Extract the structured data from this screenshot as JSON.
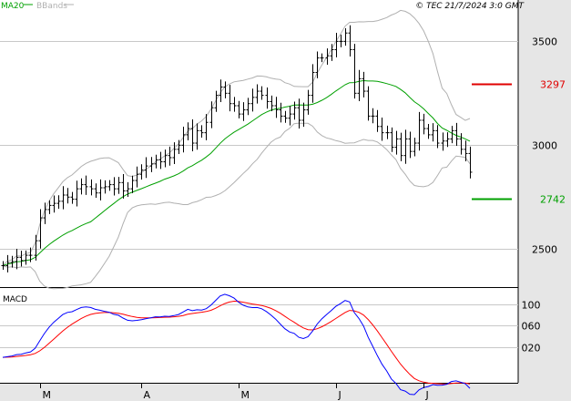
{
  "header": {
    "indicator_ma": "MA20",
    "indicator_bb": "BBands",
    "copyright": "© TEC 21/7/2024 3:0 GMT"
  },
  "colors": {
    "ma": "#00a000",
    "bbands": "#b0b0b0",
    "bars": "#000000",
    "resistance": "#e00000",
    "support": "#00a000",
    "macd": "#0000ff",
    "signal": "#ff0000",
    "axis_bg": "#e6e6e6",
    "grid": "#c8c8c8"
  },
  "chart_data": [
    {
      "type": "ohlc",
      "name": "price",
      "ylim": [
        2330,
        3620
      ],
      "y_ticks": [
        3500,
        3000,
        2500
      ],
      "y_tick_labels": [
        "3500",
        "3000",
        "2500"
      ],
      "levels": [
        {
          "label": "3297",
          "value": 3297,
          "kind": "resistance"
        },
        {
          "label": "2742",
          "value": 2742,
          "kind": "support"
        }
      ],
      "x_labels": [
        {
          "label": "M",
          "index": 8
        },
        {
          "label": "A",
          "index": 30
        },
        {
          "label": "M",
          "index": 51
        },
        {
          "label": "J",
          "index": 72
        },
        {
          "label": "J",
          "index": 91
        }
      ],
      "closes": [
        2420,
        2435,
        2440,
        2460,
        2445,
        2470,
        2470,
        2540,
        2650,
        2690,
        2710,
        2720,
        2730,
        2760,
        2750,
        2740,
        2790,
        2810,
        2800,
        2790,
        2770,
        2795,
        2800,
        2810,
        2790,
        2820,
        2780,
        2790,
        2830,
        2860,
        2880,
        2900,
        2910,
        2930,
        2920,
        2950,
        2940,
        2980,
        3000,
        3050,
        3080,
        3010,
        3070,
        3060,
        3110,
        3180,
        3240,
        3280,
        3250,
        3200,
        3190,
        3150,
        3170,
        3200,
        3230,
        3260,
        3240,
        3210,
        3190,
        3170,
        3140,
        3130,
        3150,
        3180,
        3120,
        3170,
        3240,
        3350,
        3420,
        3420,
        3430,
        3460,
        3500,
        3500,
        3540,
        3460,
        3250,
        3320,
        3260,
        3140,
        3140,
        3090,
        3060,
        3060,
        2990,
        3030,
        2950,
        3030,
        2970,
        3010,
        3120,
        3080,
        3050,
        3070,
        3010,
        3020,
        3030,
        3070,
        3030,
        2980,
        2960,
        2870
      ]
    },
    {
      "type": "line",
      "name": "MACD",
      "title": "MACD",
      "ylim": [
        -45,
        125
      ],
      "y_ticks": [
        100,
        60,
        20
      ],
      "y_tick_labels": [
        "100",
        "060",
        "020"
      ]
    }
  ]
}
